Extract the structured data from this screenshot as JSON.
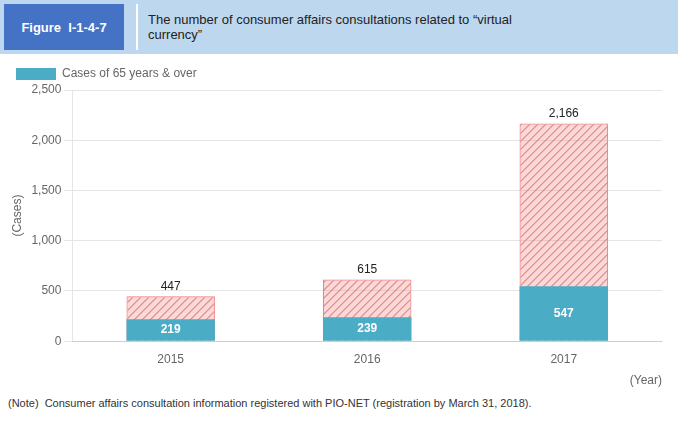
{
  "chart_data": {
    "type": "bar",
    "title": "The number of consumer affairs consultations related to “virtual\ncurrency”",
    "subtitle": "Figure  I-1-4-7",
    "annotations": [
      "(Note)  Consumer affairs consultation information registered with PIO-NET (registration by March 31, 2018)."
    ],
    "xlabel": "(Year)",
    "ylabel": "(Cases)",
    "categories": [
      "2015",
      "2016",
      "2017"
    ],
    "series": [
      {
        "color": "#f08080",
        "values": [
          447,
          615,
          2166
        ],
        "value_labels": [
          "447",
          "615",
          "2,166"
        ]
      },
      {
        "name": "Cases of 65 years & over",
        "color": "#4bacc6",
        "values": [
          219,
          239,
          547
        ]
      }
    ],
    "ylim": [
      0,
      2500
    ],
    "yticks": [
      0,
      500,
      {
        "value": 1000,
        "label": "1,000"
      },
      {
        "value": 1500,
        "label": "1,500"
      },
      {
        "value": 2000,
        "label": "2,000"
      },
      {
        "value": 2500,
        "label": "2,500"
      }
    ],
    "grid": true,
    "legend": "upper left",
    "data_labels": true
  }
}
